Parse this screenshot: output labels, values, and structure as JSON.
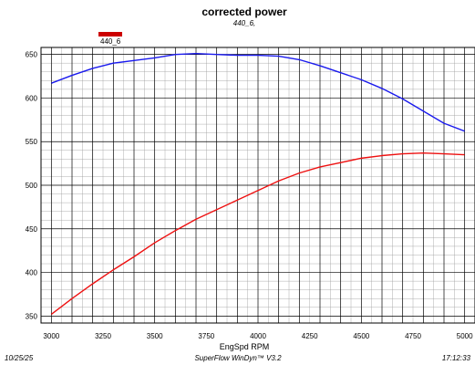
{
  "chart_data": {
    "type": "line",
    "title": "corrected power",
    "subtitle": "440_6,",
    "legend": [
      {
        "label": "440_6",
        "color": "#cc0000",
        "placement": "top-left"
      }
    ],
    "xlabel": "EngSpd RPM",
    "ylabel": "",
    "xlim": [
      2950,
      5050
    ],
    "ylim": [
      342,
      658
    ],
    "x_ticks": [
      3000,
      3250,
      3500,
      3750,
      4000,
      4250,
      4500,
      4750,
      5000
    ],
    "x_tick_labels": [
      "3000",
      "3250",
      "3500",
      "3750",
      "4000",
      "4250",
      "4500",
      "4750",
      "5000"
    ],
    "y_ticks": [
      350,
      400,
      450,
      500,
      550,
      600,
      650
    ],
    "y_tick_labels": [
      "350",
      "400",
      "450",
      "500",
      "550",
      "600",
      "650"
    ],
    "x_minor_step": 50,
    "y_minor_step": 10,
    "grid": true,
    "series": [
      {
        "color": "#1a1aee",
        "x": [
          3000,
          3100,
          3200,
          3300,
          3400,
          3500,
          3600,
          3700,
          3800,
          3900,
          4000,
          4100,
          4200,
          4300,
          4400,
          4500,
          4600,
          4700,
          4800,
          4900,
          5000
        ],
        "y": [
          617,
          626,
          634,
          640,
          643,
          646,
          650,
          651,
          650,
          649,
          649,
          648,
          644,
          637,
          629,
          621,
          611,
          599,
          585,
          571,
          562
        ]
      },
      {
        "color": "#ee1111",
        "x": [
          3000,
          3100,
          3200,
          3300,
          3400,
          3500,
          3600,
          3700,
          3800,
          3900,
          4000,
          4100,
          4200,
          4300,
          4400,
          4500,
          4600,
          4700,
          4800,
          4900,
          5000
        ],
        "y": [
          352,
          370,
          387,
          403,
          418,
          434,
          448,
          461,
          472,
          483,
          494,
          505,
          514,
          521,
          526,
          531,
          534,
          536,
          537,
          536,
          535
        ]
      }
    ]
  },
  "footer": {
    "date": "10/25/25",
    "software": "SuperFlow WinDyn™ V3.2",
    "time": "17:12:33"
  }
}
